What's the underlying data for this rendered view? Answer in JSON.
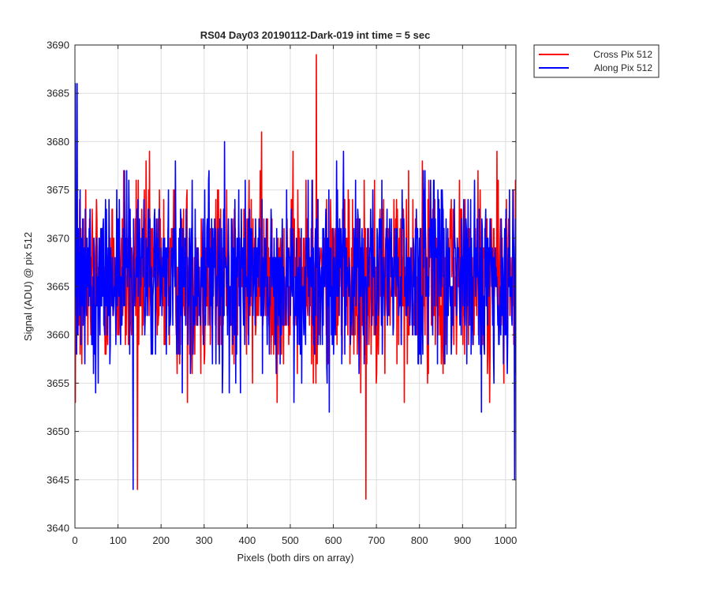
{
  "chart_data": {
    "type": "line",
    "title": "RS04 Day03 20190112-Dark-019 int time = 5 sec",
    "xlabel": "Pixels (both dirs on array)",
    "ylabel": "Signal (ADU) @ pix 512",
    "xlim": [
      0,
      1024
    ],
    "ylim": [
      3640,
      3690
    ],
    "xticks": [
      0,
      100,
      200,
      300,
      400,
      500,
      600,
      700,
      800,
      900,
      1000
    ],
    "yticks": [
      3640,
      3645,
      3650,
      3655,
      3660,
      3665,
      3670,
      3675,
      3680,
      3685,
      3690
    ],
    "grid": true,
    "legend_position": "outside-top-right",
    "n_points": 1024,
    "series": [
      {
        "name": "Cross Pix 512",
        "color": "#ff0000",
        "mean": 3666,
        "spread": 5,
        "y": [
          3659,
          3653,
          3672,
          3668,
          3660,
          3676,
          3663,
          3665,
          3670,
          3661,
          3667,
          3674,
          3658,
          3665,
          3671,
          3663,
          3657,
          3669,
          3666,
          3661,
          3672,
          3664,
          3668,
          3660,
          3663,
          3675,
          3667,
          3662,
          3670,
          3665
        ]
      },
      {
        "name": "Along Pix 512",
        "color": "#0000ff",
        "mean": 3666,
        "spread": 5,
        "y": [
          3662,
          3686,
          3664,
          3669,
          3658,
          3673,
          3666,
          3660,
          3671,
          3665,
          3668,
          3662,
          3675,
          3664,
          3659,
          3670,
          3667,
          3663,
          3672,
          3661,
          3666,
          3669,
          3664,
          3657,
          3673,
          3665,
          3668,
          3662,
          3670,
          3666
        ]
      }
    ],
    "annotations": [
      {
        "x": 5,
        "y": 3686,
        "series": "Along Pix 512"
      },
      {
        "x": 135,
        "y": 3644,
        "series": "Along Pix 512"
      },
      {
        "x": 145,
        "y": 3644,
        "series": "Cross Pix 512"
      },
      {
        "x": 560,
        "y": 3689,
        "series": "Cross Pix 512"
      },
      {
        "x": 675,
        "y": 3643,
        "series": "Cross Pix 512"
      },
      {
        "x": 1020,
        "y": 3645,
        "series": "Along Pix 512"
      }
    ]
  }
}
